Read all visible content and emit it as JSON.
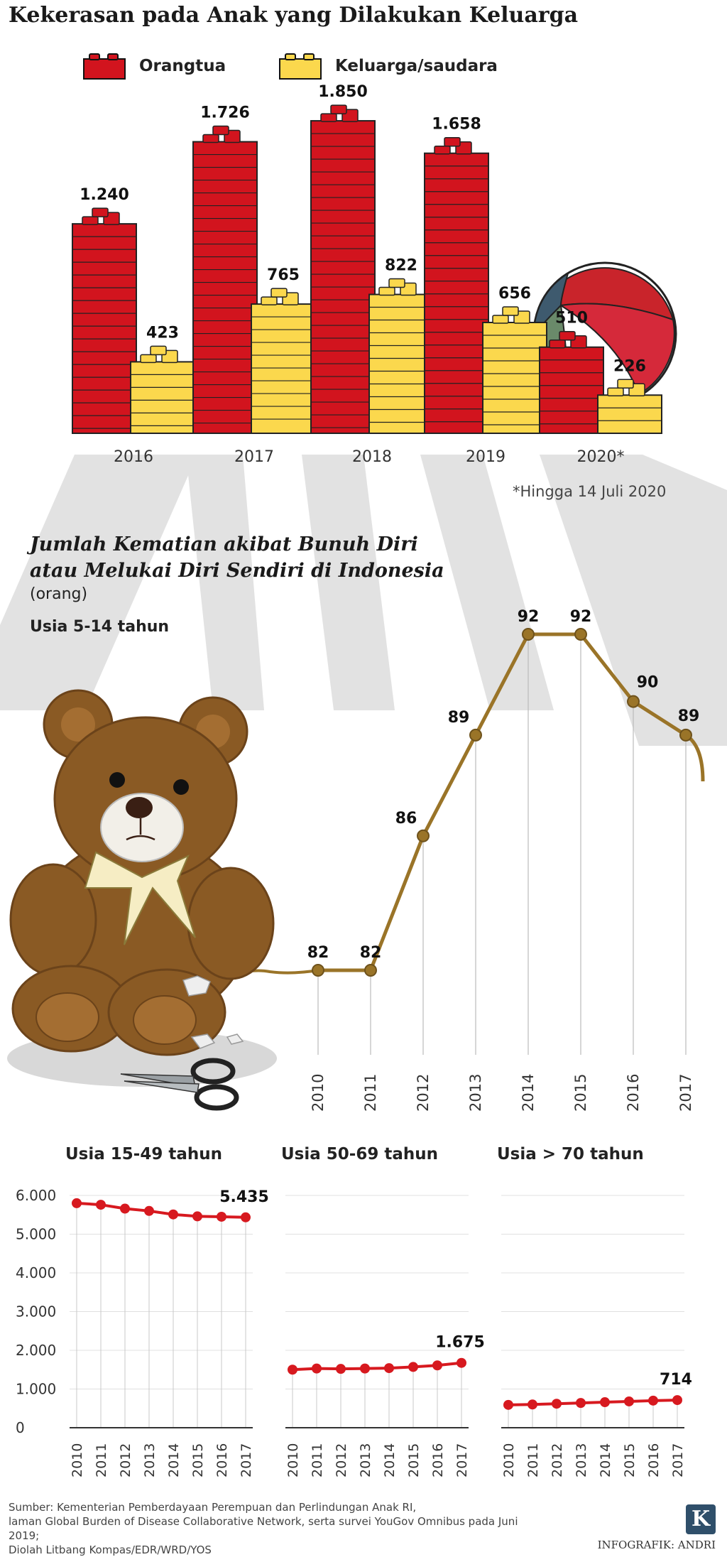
{
  "title": "Kekerasan pada Anak yang Dilakukan Keluarga",
  "colors": {
    "red": "#d2141e",
    "yellow": "#fbd84d",
    "line": "#9a7428",
    "red_line": "#d7191f",
    "gray": "#dcdcdc"
  },
  "chart_data": [
    {
      "type": "bar",
      "categories": [
        "2016",
        "2017",
        "2018",
        "2019",
        "2020*"
      ],
      "series": [
        {
          "name": "Orangtua",
          "values": [
            1240,
            1726,
            1850,
            1658,
            510
          ],
          "labels": [
            "1.240",
            "1.726",
            "1.850",
            "1.658",
            "510"
          ]
        },
        {
          "name": "Keluarga/saudara",
          "values": [
            423,
            765,
            822,
            656,
            226
          ],
          "labels": [
            "423",
            "765",
            "822",
            "656",
            "226"
          ]
        }
      ],
      "note": "*Hingga 14 Juli 2020"
    },
    {
      "type": "line",
      "title": "Jumlah Kematian akibat Bunuh Diri atau Melukai Diri Sendiri di Indonesia",
      "unit": "(orang)",
      "subtitle": "Usia 5-14 tahun",
      "x": [
        "2010",
        "2011",
        "2012",
        "2013",
        "2014",
        "2015",
        "2016",
        "2017"
      ],
      "values": [
        82,
        82,
        86,
        89,
        92,
        92,
        90,
        89
      ],
      "labels": [
        "82",
        "82",
        "86",
        "89",
        "92",
        "92",
        "90",
        "89"
      ]
    },
    {
      "type": "line",
      "subtitle": "Usia 15-49 tahun",
      "x": [
        "2010",
        "2011",
        "2012",
        "2013",
        "2014",
        "2015",
        "2016",
        "2017"
      ],
      "values": [
        5800,
        5760,
        5660,
        5600,
        5510,
        5460,
        5450,
        5435
      ],
      "end_label": "5.435",
      "y_ticks": [
        "0",
        "1.000",
        "2.000",
        "3.000",
        "4.000",
        "5.000",
        "6.000"
      ],
      "ylim": [
        0,
        6000
      ]
    },
    {
      "type": "line",
      "subtitle": "Usia 50-69 tahun",
      "x": [
        "2010",
        "2011",
        "2012",
        "2013",
        "2014",
        "2015",
        "2016",
        "2017"
      ],
      "values": [
        1500,
        1530,
        1520,
        1530,
        1540,
        1570,
        1610,
        1675
      ],
      "end_label": "1.675",
      "ylim": [
        0,
        6000
      ]
    },
    {
      "type": "line",
      "subtitle": "Usia > 70 tahun",
      "x": [
        "2010",
        "2011",
        "2012",
        "2013",
        "2014",
        "2015",
        "2016",
        "2017"
      ],
      "values": [
        590,
        600,
        620,
        640,
        660,
        680,
        700,
        714
      ],
      "end_label": "714",
      "ylim": [
        0,
        6000
      ]
    }
  ],
  "source_lines": [
    "Sumber: Kementerian Pemberdayaan Perempuan dan Perlindungan Anak RI,",
    "laman Global Burden of Disease Collaborative Network, serta survei YouGov Omnibus pada Juni 2019;",
    "Diolah Litbang Kompas/EDR/WRD/YOS"
  ],
  "credit": "INFOGRAFIK: ANDRI",
  "logo_letter": "K"
}
